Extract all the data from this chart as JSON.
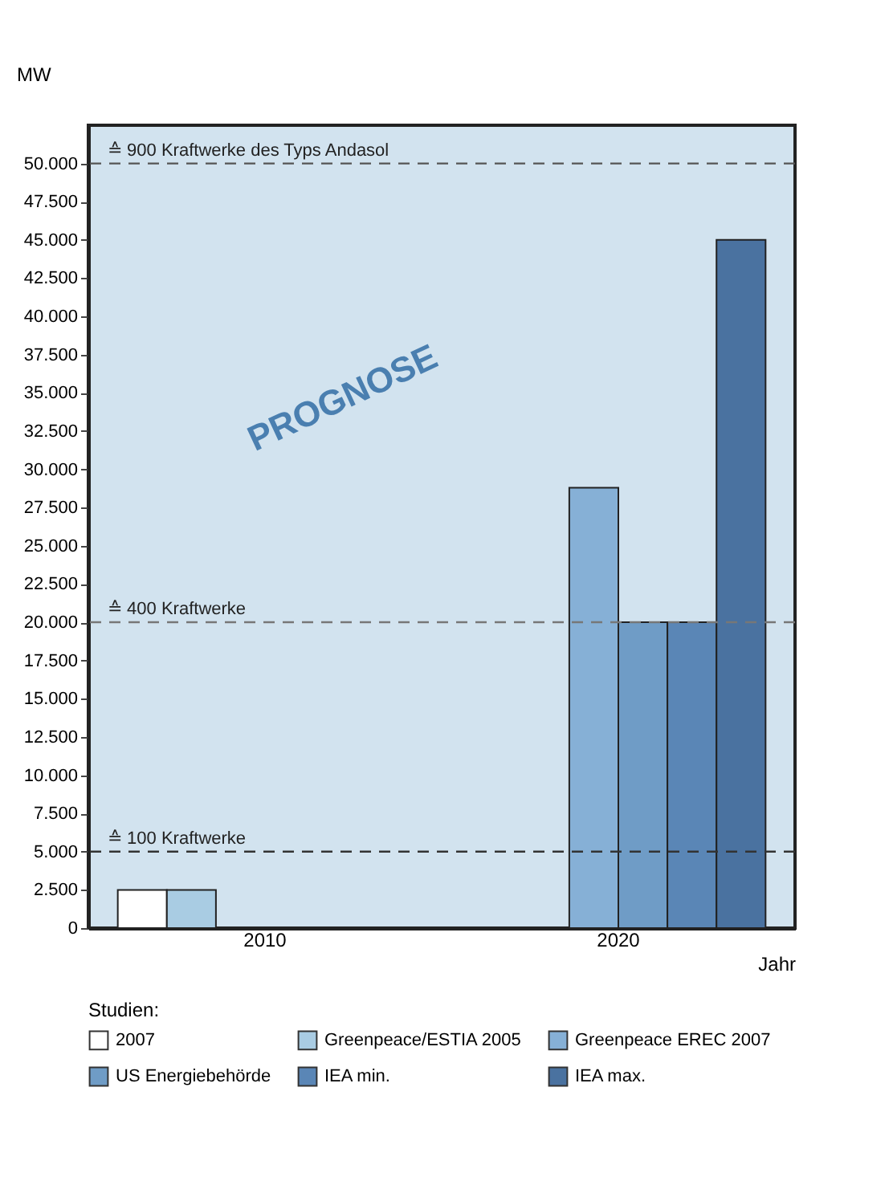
{
  "chart_data": {
    "type": "bar",
    "ylabel": "MW",
    "xlabel": "Jahr",
    "legend_title": "Studien:",
    "legend": "bottom",
    "categories": [
      "2010",
      "2020"
    ],
    "series": [
      {
        "name": "2007",
        "color": "#ffffff",
        "values": [
          2500,
          null
        ]
      },
      {
        "name": "Greenpeace/ESTIA 2005",
        "color": "#a9cce3",
        "values": [
          2500,
          null
        ]
      },
      {
        "name": "Greenpeace EREC 2007",
        "color": "#86b0d6",
        "values": [
          null,
          28800
        ]
      },
      {
        "name": "US Energiebehörde",
        "color": "#6f9cc6",
        "values": [
          null,
          20000
        ]
      },
      {
        "name": "IEA min.",
        "color": "#5a86b6",
        "values": [
          null,
          20000
        ]
      },
      {
        "name": "IEA max.",
        "color": "#4a72a0",
        "values": [
          null,
          45000
        ]
      }
    ],
    "ylim": [
      0,
      52500
    ],
    "yticks": [
      {
        "value": 0,
        "label": "0"
      },
      {
        "value": 2500,
        "label": "2.500"
      },
      {
        "value": 5000,
        "label": "5.000"
      },
      {
        "value": 7500,
        "label": "7.500"
      },
      {
        "value": 10000,
        "label": "10.000"
      },
      {
        "value": 12500,
        "label": "12.500"
      },
      {
        "value": 15000,
        "label": "15.000"
      },
      {
        "value": 17500,
        "label": "17.500"
      },
      {
        "value": 20000,
        "label": "20.000"
      },
      {
        "value": 22500,
        "label": "22.500"
      },
      {
        "value": 25000,
        "label": "25.000"
      },
      {
        "value": 27500,
        "label": "27.500"
      },
      {
        "value": 30000,
        "label": "30.000"
      },
      {
        "value": 32500,
        "label": "32.500"
      },
      {
        "value": 35000,
        "label": "35.000"
      },
      {
        "value": 37500,
        "label": "37.500"
      },
      {
        "value": 40000,
        "label": "40.000"
      },
      {
        "value": 42500,
        "label": "42.500"
      },
      {
        "value": 45000,
        "label": "45.000"
      },
      {
        "value": 47500,
        "label": "47.500"
      },
      {
        "value": 50000,
        "label": "50.000"
      }
    ],
    "ref_lines": [
      {
        "axis": "y",
        "value": 50000,
        "label": "≙ 900 Kraftwerke des Typs Andasol",
        "color": "#555555",
        "line_style": "dashed"
      },
      {
        "axis": "y",
        "value": 20000,
        "label": "≙ 400 Kraftwerke",
        "color": "#777777",
        "line_style": "dashed"
      },
      {
        "axis": "y",
        "value": 5000,
        "label": "≙ 100 Kraftwerke",
        "color": "#333333",
        "line_style": "dashed"
      }
    ],
    "annotations": [
      "PROGNOSE"
    ]
  }
}
